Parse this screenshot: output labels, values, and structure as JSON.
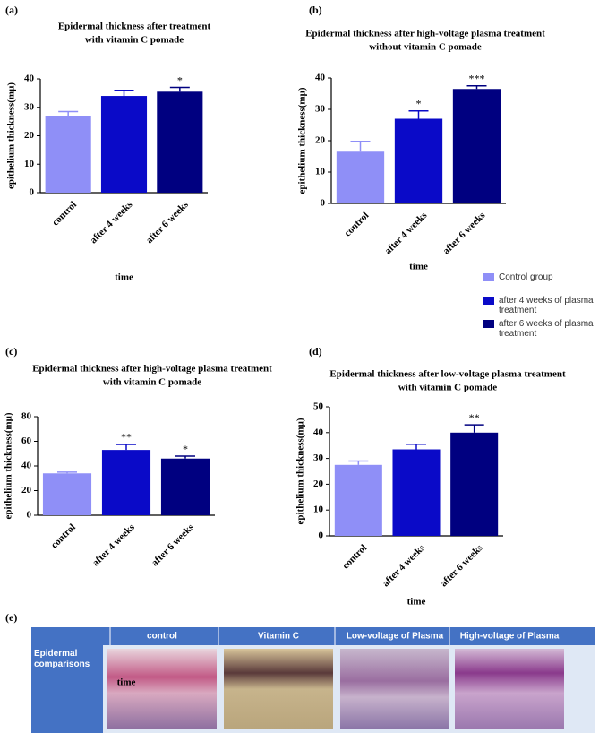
{
  "chart_data": [
    {
      "type": "bar",
      "panel_label": "(a)",
      "title": [
        "Epidermal thickness after treatment",
        "with vitamin C pomade"
      ],
      "x_label": "time",
      "y_label": "epithelium thickness(mμ)",
      "categories": [
        "control",
        "after 4 weeks",
        "after 6 weeks"
      ],
      "values": [
        27,
        34,
        35.5
      ],
      "errors": [
        1.5,
        2,
        1.5
      ],
      "annotations": [
        null,
        null,
        "*"
      ],
      "colors": [
        "#8f8ff7",
        "#0a0ac8",
        "#000080"
      ],
      "ylim": [
        0,
        40
      ],
      "yticks": [
        0,
        10,
        20,
        30,
        40
      ]
    },
    {
      "type": "bar",
      "panel_label": "(b)",
      "title": [
        "Epidermal thickness after high-voltage plasma treatment",
        "without vitamin C pomade"
      ],
      "x_label": "time",
      "y_label": "epithelium thickness(mμ)",
      "categories": [
        "control",
        "after 4 weeks",
        "after 6 weeks"
      ],
      "values": [
        16.5,
        27,
        36.5
      ],
      "errors": [
        3.3,
        2.5,
        1
      ],
      "annotations": [
        null,
        "*",
        "***"
      ],
      "colors": [
        "#8f8ff7",
        "#0a0ac8",
        "#000080"
      ],
      "ylim": [
        0,
        40
      ],
      "yticks": [
        0,
        10,
        20,
        30,
        40
      ]
    },
    {
      "type": "bar",
      "panel_label": "(c)",
      "title": [
        "Epidermal thickness after high-voltage plasma treatment",
        "with vitamin C pomade"
      ],
      "x_label": "time",
      "y_label": "epithelium thickness(mμ)",
      "categories": [
        "control",
        "after 4 weeks",
        "after 6 weeks"
      ],
      "values": [
        34,
        53,
        46
      ],
      "errors": [
        1,
        4.5,
        2
      ],
      "annotations": [
        null,
        "**",
        "*"
      ],
      "colors": [
        "#8f8ff7",
        "#0a0ac8",
        "#000080"
      ],
      "ylim": [
        0,
        80
      ],
      "yticks": [
        0,
        20,
        40,
        60,
        80
      ]
    },
    {
      "type": "bar",
      "panel_label": "(d)",
      "title": [
        "Epidermal thickness after low-voltage plasma treatment",
        "with vitamin C pomade"
      ],
      "x_label": "time",
      "y_label": "epithelium thickness(mμ)",
      "categories": [
        "control",
        "after 4 weeks",
        "after 6 weeks"
      ],
      "values": [
        27.5,
        33.5,
        40
      ],
      "errors": [
        1.5,
        2,
        3
      ],
      "annotations": [
        null,
        null,
        "**"
      ],
      "colors": [
        "#8f8ff7",
        "#0a0ac8",
        "#000080"
      ],
      "ylim": [
        0,
        50
      ],
      "yticks": [
        0,
        10,
        20,
        30,
        40,
        50
      ]
    }
  ],
  "legend": [
    {
      "name": "Control group",
      "color": "#8f8ff7"
    },
    {
      "name": "after 4 weeks of plasma treatment",
      "color": "#0a0ac8"
    },
    {
      "name": "after 6 weeks of plasma treatment",
      "color": "#000080"
    }
  ],
  "panel_e": {
    "panel_label": "(e)",
    "row_label": "Epidermal comparisons",
    "columns": [
      "control",
      "Vitamin C",
      "Low-voltage of Plasma",
      "High-voltage of Plasma"
    ]
  }
}
